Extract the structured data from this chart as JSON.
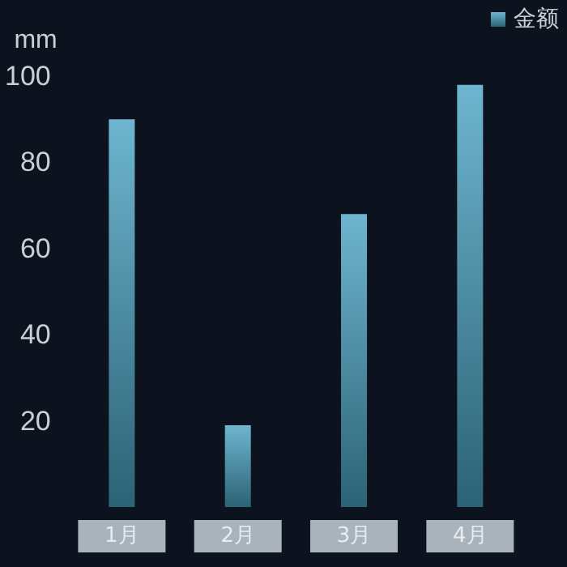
{
  "chart_data": {
    "type": "bar",
    "ylabel": "mm",
    "categories": [
      "1月",
      "2月",
      "3月",
      "4月"
    ],
    "series": [
      {
        "name": "金额",
        "color": "#4aa3c3",
        "values": [
          90,
          19,
          68,
          98
        ]
      }
    ],
    "ylim": [
      0,
      100
    ],
    "yticks": [
      20,
      40,
      60,
      80,
      100
    ],
    "grid": false,
    "legend": "top right"
  }
}
